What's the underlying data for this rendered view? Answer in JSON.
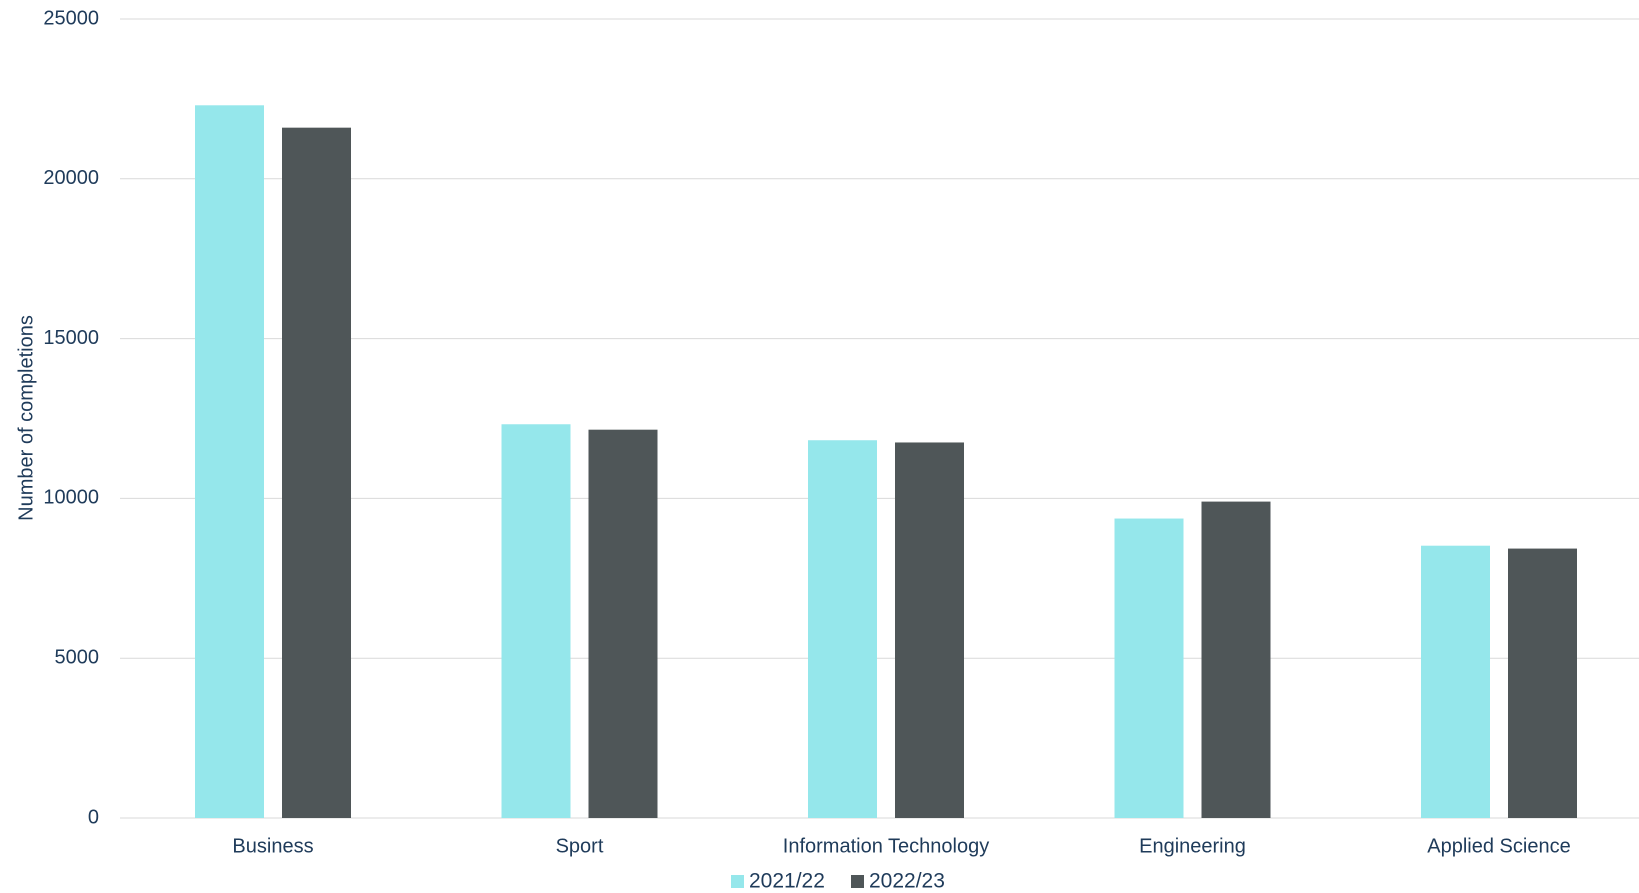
{
  "chart_data": {
    "type": "bar",
    "title": "",
    "xlabel": "",
    "ylabel": "Number of completions",
    "categories": [
      "Business",
      "Sport",
      "Information Technology",
      "Engineering",
      "Applied Science"
    ],
    "series": [
      {
        "name": "2021/22",
        "color": "#95e7eb",
        "values": [
          22300,
          12320,
          11820,
          9370,
          8520
        ]
      },
      {
        "name": "2022/23",
        "color": "#4f5658",
        "values": [
          21600,
          12150,
          11750,
          9900,
          8430
        ]
      }
    ],
    "ylim": [
      0,
      25000
    ],
    "yticks": [
      0,
      5000,
      10000,
      15000,
      20000,
      25000
    ],
    "ytick_labels": [
      "0",
      "5000",
      "10000",
      "15000",
      "20000",
      "25000"
    ],
    "grid": true,
    "legend_position": "bottom-center"
  }
}
